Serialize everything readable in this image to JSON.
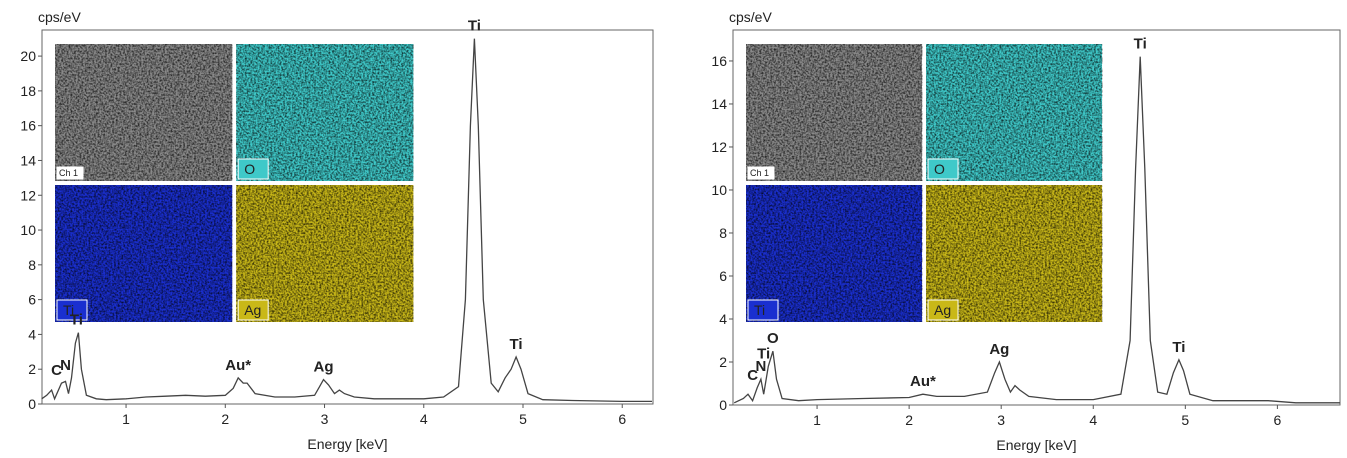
{
  "chart_data": [
    {
      "type": "line",
      "y_label": "cps/eV",
      "x_label": "Energy [keV]",
      "color": "#444444",
      "xlim": [
        0.153,
        6.31
      ],
      "xticks": [
        1,
        2,
        3,
        4,
        5,
        6
      ],
      "ylim": [
        0,
        21.5
      ],
      "yticks": [
        0,
        2,
        4,
        6,
        8,
        10,
        12,
        14,
        16,
        18,
        20
      ],
      "x": [
        0.15,
        0.2,
        0.25,
        0.28,
        0.35,
        0.39,
        0.42,
        0.45,
        0.49,
        0.52,
        0.55,
        0.6,
        0.7,
        0.8,
        1.0,
        1.2,
        1.4,
        1.6,
        1.8,
        2.0,
        2.08,
        2.13,
        2.18,
        2.22,
        2.3,
        2.5,
        2.7,
        2.9,
        2.95,
        2.99,
        3.04,
        3.1,
        3.15,
        3.2,
        3.3,
        3.5,
        3.8,
        4.0,
        4.2,
        4.35,
        4.42,
        4.47,
        4.51,
        4.55,
        4.6,
        4.68,
        4.75,
        4.82,
        4.88,
        4.93,
        4.98,
        5.05,
        5.2,
        5.5,
        6.0,
        6.3
      ],
      "values": [
        0.3,
        0.5,
        0.8,
        0.3,
        1.2,
        1.3,
        0.6,
        1.5,
        3.5,
        4.1,
        2.0,
        0.5,
        0.3,
        0.25,
        0.3,
        0.4,
        0.45,
        0.5,
        0.45,
        0.5,
        0.9,
        1.5,
        1.2,
        1.2,
        0.6,
        0.4,
        0.4,
        0.5,
        1.0,
        1.4,
        1.1,
        0.6,
        0.8,
        0.6,
        0.4,
        0.3,
        0.3,
        0.3,
        0.4,
        1.0,
        6,
        16,
        21,
        16,
        6,
        1.2,
        0.7,
        1.5,
        2.0,
        2.7,
        2.0,
        0.6,
        0.25,
        0.2,
        0.15,
        0.15
      ],
      "annotations": [
        {
          "text": "C",
          "x": 0.3
        },
        {
          "text": "N",
          "x": 0.39
        },
        {
          "text": "Ti",
          "x": 0.5
        },
        {
          "text": "Au*",
          "x": 2.13
        },
        {
          "text": "Ag",
          "x": 2.99
        },
        {
          "text": "Ti",
          "x": 4.51
        },
        {
          "text": "Ti",
          "x": 4.93
        }
      ],
      "insets": [
        {
          "label": "Ch 1",
          "color": "#8a8a8a",
          "text_color": "#000000"
        },
        {
          "label": "O",
          "color": "#3fc9c9",
          "text_color": "#000000"
        },
        {
          "label": "Ti",
          "color": "#1a2fd0",
          "text_color": "#ffffff"
        },
        {
          "label": "Ag",
          "color": "#c9b818",
          "text_color": "#000000"
        }
      ]
    },
    {
      "type": "line",
      "y_label": "cps/eV",
      "x_label": "Energy [keV]",
      "color": "#444444",
      "xlim": [
        0.087,
        6.68
      ],
      "xticks": [
        1,
        2,
        3,
        4,
        5,
        6
      ],
      "ylim": [
        0,
        17.44
      ],
      "yticks": [
        0,
        2,
        4,
        6,
        8,
        10,
        12,
        14,
        16
      ],
      "x": [
        0.1,
        0.2,
        0.25,
        0.3,
        0.35,
        0.39,
        0.42,
        0.47,
        0.52,
        0.56,
        0.62,
        0.8,
        1.0,
        1.5,
        2.0,
        2.15,
        2.3,
        2.6,
        2.85,
        2.93,
        2.98,
        3.04,
        3.1,
        3.15,
        3.2,
        3.3,
        3.6,
        4.0,
        4.3,
        4.4,
        4.46,
        4.51,
        4.56,
        4.62,
        4.7,
        4.8,
        4.87,
        4.93,
        4.98,
        5.05,
        5.3,
        5.9,
        6.2,
        6.68
      ],
      "values": [
        0.1,
        0.3,
        0.5,
        0.2,
        0.8,
        1.2,
        0.5,
        1.8,
        2.5,
        1.2,
        0.3,
        0.2,
        0.25,
        0.3,
        0.35,
        0.5,
        0.4,
        0.4,
        0.6,
        1.5,
        2.0,
        1.2,
        0.6,
        0.9,
        0.7,
        0.4,
        0.25,
        0.25,
        0.5,
        3,
        11,
        16.2,
        11,
        3,
        0.6,
        0.5,
        1.5,
        2.1,
        1.6,
        0.5,
        0.2,
        0.2,
        0.1,
        0.1
      ],
      "annotations": [
        {
          "text": "C",
          "x": 0.3
        },
        {
          "text": "Ti",
          "x": 0.42
        },
        {
          "text": "N",
          "x": 0.39
        },
        {
          "text": "O",
          "x": 0.52
        },
        {
          "text": "Au*",
          "x": 2.15
        },
        {
          "text": "Ag",
          "x": 2.98
        },
        {
          "text": "Ti",
          "x": 4.51
        },
        {
          "text": "Ti",
          "x": 4.93
        }
      ],
      "insets": [
        {
          "label": "Ch 1",
          "color": "#8a8a8a",
          "text_color": "#000000"
        },
        {
          "label": "O",
          "color": "#3fc9c9",
          "text_color": "#000000"
        },
        {
          "label": "Ti",
          "color": "#1a2fd0",
          "text_color": "#ffffff"
        },
        {
          "label": "Ag",
          "color": "#c9b818",
          "text_color": "#000000"
        }
      ]
    }
  ]
}
